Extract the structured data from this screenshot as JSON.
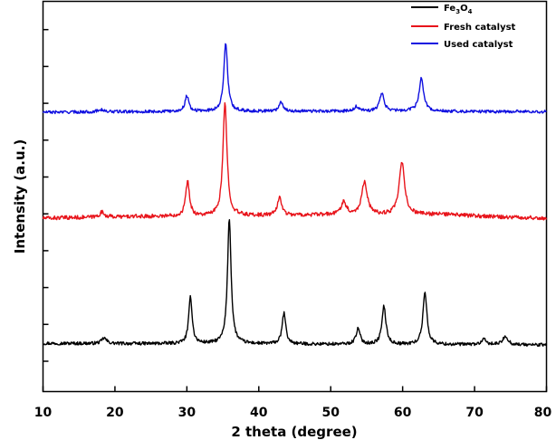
{
  "chart_data": {
    "type": "line",
    "xlabel": "2 theta (degree)",
    "ylabel": "Intensity (a.u.)",
    "xlim": [
      10,
      80
    ],
    "x_ticks": [
      10,
      20,
      30,
      40,
      50,
      60,
      70,
      80
    ],
    "x_tick_labels": [
      "10",
      "20",
      "30",
      "40",
      "50",
      "60",
      "70",
      "80"
    ],
    "y_ticks": "unlabeled",
    "grid": false,
    "legend_position": "top-right",
    "legend": [
      {
        "text_main": "Fe",
        "sub1": "3",
        "text_mid": "O",
        "sub2": "4",
        "color": "#000000"
      },
      {
        "text_main": "Fresh catalyst",
        "color": "#e8141b"
      },
      {
        "text_main": "Used catalyst",
        "color": "#1010e0"
      }
    ],
    "series": [
      {
        "color": "#000000",
        "baseline": [
          [
            10,
            0.3
          ],
          [
            20,
            0.29
          ],
          [
            30,
            0.29
          ],
          [
            40,
            0.28
          ],
          [
            50,
            0.27
          ],
          [
            60,
            0.26
          ],
          [
            70,
            0.26
          ],
          [
            80,
            0.25
          ]
        ],
        "peaks": [
          [
            18.5,
            0.17,
            0.4
          ],
          [
            30.5,
            1.45,
            0.28
          ],
          [
            35.9,
            3.85,
            0.3
          ],
          [
            43.5,
            0.95,
            0.3
          ],
          [
            53.8,
            0.47,
            0.35
          ],
          [
            57.4,
            1.17,
            0.33
          ],
          [
            63.1,
            1.62,
            0.33
          ],
          [
            71.3,
            0.15,
            0.4
          ],
          [
            74.3,
            0.27,
            0.4
          ]
        ],
        "noise": 0.05
      },
      {
        "color": "#e8141b",
        "baseline": [
          [
            10,
            0.0
          ],
          [
            20,
            0.04
          ],
          [
            27,
            0.06
          ],
          [
            33,
            0.06
          ],
          [
            40,
            0.08
          ],
          [
            50,
            0.1
          ],
          [
            57,
            0.1
          ],
          [
            65,
            0.12
          ],
          [
            72,
            0.05
          ],
          [
            80,
            0.0
          ]
        ],
        "peaks": [
          [
            18.2,
            0.15,
            0.4
          ],
          [
            30.1,
            1.06,
            0.32
          ],
          [
            35.3,
            3.45,
            0.34
          ],
          [
            42.9,
            0.56,
            0.35
          ],
          [
            51.8,
            0.4,
            0.45
          ],
          [
            54.7,
            1.03,
            0.45
          ],
          [
            59.9,
            1.6,
            0.45
          ]
        ],
        "noise": 0.06
      },
      {
        "color": "#1010e0",
        "baseline": [
          [
            10,
            0.0
          ],
          [
            20,
            0.02
          ],
          [
            30,
            0.03
          ],
          [
            40,
            0.04
          ],
          [
            50,
            0.04
          ],
          [
            60,
            0.05
          ],
          [
            70,
            0.03
          ],
          [
            80,
            0.02
          ]
        ],
        "peaks": [
          [
            18.0,
            0.1,
            0.4
          ],
          [
            30.0,
            0.62,
            0.32
          ],
          [
            35.4,
            2.67,
            0.32
          ],
          [
            43.1,
            0.38,
            0.32
          ],
          [
            53.6,
            0.18,
            0.35
          ],
          [
            57.1,
            0.72,
            0.35
          ],
          [
            62.6,
            1.29,
            0.38
          ]
        ],
        "noise": 0.06
      }
    ]
  }
}
